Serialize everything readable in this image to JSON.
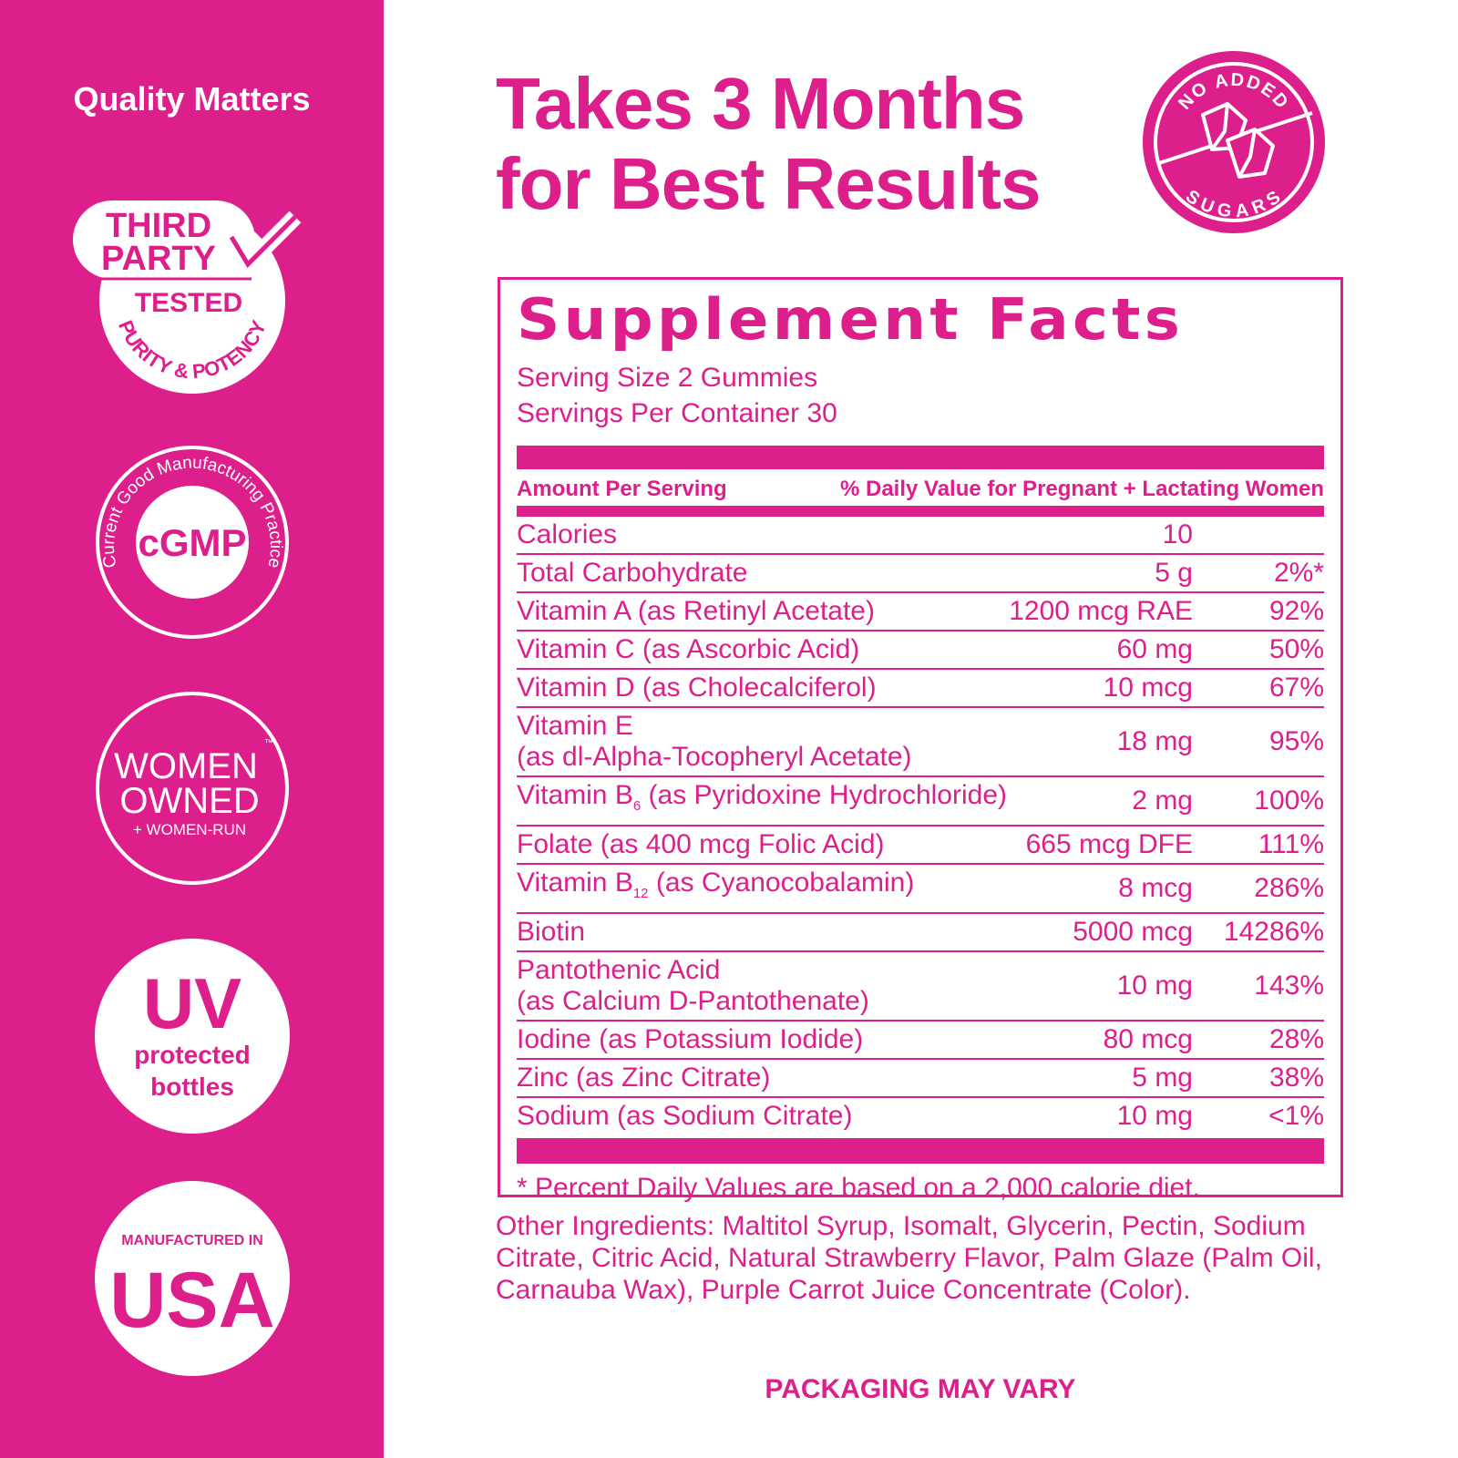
{
  "sidebar": {
    "title": "Quality Matters",
    "badges": {
      "third_party": {
        "line1": "THIRD",
        "line2": "PARTY",
        "line3": "TESTED",
        "arc": "PURITY & POTENCY"
      },
      "cgmp": {
        "center": "cGMP",
        "arc": "Current Good Manufacturing Practice"
      },
      "women": {
        "line1": "WOMEN",
        "tm": "™",
        "line2": "OWNED",
        "line3": "+ WOMEN-RUN"
      },
      "uv": {
        "line1": "UV",
        "line2": "protected",
        "line3": "bottles"
      },
      "usa": {
        "line1": "MANUFACTURED IN",
        "line2": "USA"
      }
    }
  },
  "headline": {
    "line1": "Takes 3 Months",
    "line2": "for Best Results"
  },
  "sugar_badge": {
    "top": "NO ADDED",
    "bottom": "SUGARS",
    "icon": "sugar-cubes-icon"
  },
  "facts": {
    "title": "Supplement Facts",
    "serving_size": "Serving Size 2 Gummies",
    "servings_per_container": "Servings Per Container 30",
    "header_left": "Amount Per Serving",
    "header_right": "% Daily Value for Pregnant + Lactating Women",
    "rows": [
      {
        "name": "Calories",
        "amount": "10",
        "dv": ""
      },
      {
        "name": "Total Carbohydrate",
        "amount": "5 g",
        "dv": "2%*"
      },
      {
        "name": "Vitamin A (as Retinyl Acetate)",
        "amount": "1200 mcg RAE",
        "dv": "92%"
      },
      {
        "name": "Vitamin C (as Ascorbic Acid)",
        "amount": "60 mg",
        "dv": "50%"
      },
      {
        "name": "Vitamin D (as Cholecalciferol)",
        "amount": "10 mcg",
        "dv": "67%"
      },
      {
        "name": "Vitamin E",
        "name2": "(as dl-Alpha-Tocopheryl Acetate)",
        "amount": "18 mg",
        "dv": "95%"
      },
      {
        "name": "Vitamin B",
        "sub": "6",
        "rest": " (as Pyridoxine Hydrochloride)",
        "amount": "2 mg",
        "dv": "100%"
      },
      {
        "name": "Folate (as 400 mcg Folic Acid)",
        "amount": "665 mcg DFE",
        "dv": "111%"
      },
      {
        "name": "Vitamin B",
        "sub": "12",
        "rest": " (as Cyanocobalamin)",
        "amount": "8 mcg",
        "dv": "286%"
      },
      {
        "name": "Biotin",
        "amount": "5000 mcg",
        "dv": "14286%"
      },
      {
        "name": "Pantothenic Acid",
        "name2": "(as Calcium D-Pantothenate)",
        "amount": "10 mg",
        "dv": "143%"
      },
      {
        "name": "Iodine (as Potassium Iodide)",
        "amount": "80 mcg",
        "dv": "28%"
      },
      {
        "name": "Zinc (as Zinc Citrate)",
        "amount": "5 mg",
        "dv": "38%"
      },
      {
        "name": "Sodium (as Sodium Citrate)",
        "amount": "10 mg",
        "dv": "<1%"
      }
    ],
    "footnote": "* Percent Daily Values are based on a 2,000 calorie diet."
  },
  "other_ingredients": "Other Ingredients: Maltitol Syrup, Isomalt, Glycerin, Pectin, Sodium Citrate, Citric Acid, Natural Strawberry Flavor, Palm Glaze (Palm Oil, Carnauba Wax), Purple Carrot Juice Concentrate (Color).",
  "packaging_note": "PACKAGING MAY VARY",
  "colors": {
    "brand_pink": "#dd1f8c",
    "white": "#ffffff"
  }
}
